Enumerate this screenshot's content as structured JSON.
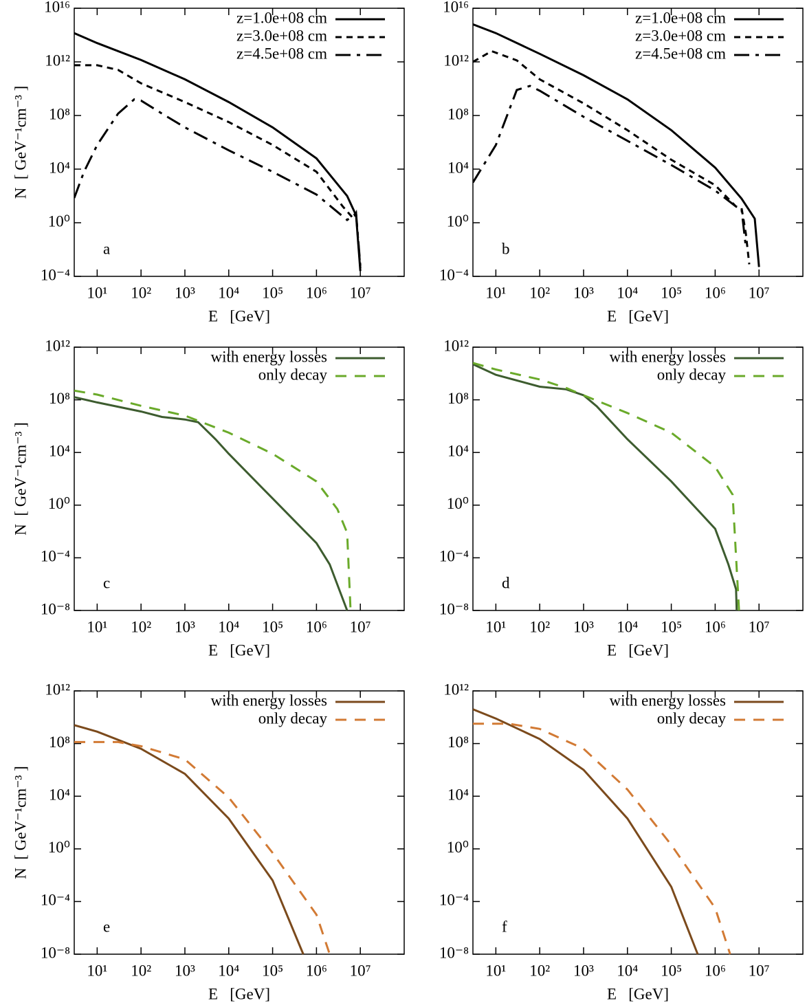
{
  "chart_data": [
    {
      "type": "line",
      "annotation": "a",
      "xlabel": "E   [GeV]",
      "ylabel": "N  [ GeV⁻¹cm⁻³ ]",
      "log_x": true,
      "log_y": true,
      "legend": "upper right",
      "xlim": [
        3,
        100000000.0
      ],
      "ylim": [
        0.0001,
        1e+16
      ],
      "xticks": [
        {
          "value": 10,
          "label": "10¹"
        },
        {
          "value": 100,
          "label": "10²"
        },
        {
          "value": 1000,
          "label": "10³"
        },
        {
          "value": 10000.0,
          "label": "10⁴"
        },
        {
          "value": 100000.0,
          "label": "10⁵"
        },
        {
          "value": 1000000.0,
          "label": "10⁶"
        },
        {
          "value": 10000000.0,
          "label": "10⁷"
        }
      ],
      "yticks": [
        {
          "value": 0.0001,
          "label": "10⁻⁴"
        },
        {
          "value": 1,
          "label": "10⁰"
        },
        {
          "value": 10000.0,
          "label": "10⁴"
        },
        {
          "value": 100000000.0,
          "label": "10⁸"
        },
        {
          "value": 1000000000000.0,
          "label": "10¹²"
        },
        {
          "value": 1e+16,
          "label": "10¹⁶"
        }
      ],
      "series": [
        {
          "name": "z=1.0e+08 cm",
          "color": "#000000",
          "linestyle": "solid",
          "x": [
            3,
            10,
            100,
            1000.0,
            10000.0,
            100000.0,
            1000000.0,
            5000000.0,
            8000000.0,
            10000000.0
          ],
          "values": [
            140000000000000.0,
            25000000000000.0,
            1400000000000.0,
            50000000000.0,
            1000000000.0,
            13000000.0,
            63000.0,
            100,
            3.6,
            0.00025
          ]
        },
        {
          "name": "z=3.0e+08 cm",
          "color": "#000000",
          "linestyle": "dotted",
          "x": [
            3,
            10,
            30,
            100,
            1000.0,
            10000.0,
            100000.0,
            1000000.0,
            4000000.0,
            7000000.0,
            8000000.0,
            10000000.0
          ],
          "values": [
            560000000000.0,
            560000000000.0,
            250000000000.0,
            25000000000.0,
            1000000000.0,
            32000000.0,
            630000.0,
            6300.0,
            16,
            2,
            5,
            0.0004
          ]
        },
        {
          "name": "z=4.5e+08 cm",
          "color": "#000000",
          "linestyle": "dashdot",
          "x": [
            3,
            5,
            10,
            30,
            70,
            100,
            300,
            1000.0,
            10000.0,
            100000.0,
            1000000.0,
            5000000.0,
            8000000.0,
            10000000.0
          ],
          "values": [
            70,
            6300.0,
            630000.0,
            140000000.0,
            1600000000.0,
            1300000000.0,
            140000000.0,
            13000000.0,
            250000.0,
            6300.0,
            126,
            1.6,
            5,
            0.00063
          ]
        }
      ]
    },
    {
      "type": "line",
      "annotation": "b",
      "xlabel": "E   [GeV]",
      "log_x": true,
      "log_y": true,
      "legend": "upper right",
      "xlim": [
        3,
        100000000.0
      ],
      "ylim": [
        0.0001,
        1e+16
      ],
      "xticks": [
        {
          "value": 10,
          "label": "10¹"
        },
        {
          "value": 100,
          "label": "10²"
        },
        {
          "value": 1000,
          "label": "10³"
        },
        {
          "value": 10000.0,
          "label": "10⁴"
        },
        {
          "value": 100000.0,
          "label": "10⁵"
        },
        {
          "value": 1000000.0,
          "label": "10⁶"
        },
        {
          "value": 10000000.0,
          "label": "10⁷"
        }
      ],
      "yticks": [
        {
          "value": 0.0001,
          "label": "10⁻⁴"
        },
        {
          "value": 1,
          "label": "10⁰"
        },
        {
          "value": 10000.0,
          "label": "10⁴"
        },
        {
          "value": 100000000.0,
          "label": "10⁸"
        },
        {
          "value": 1000000000000.0,
          "label": "10¹²"
        },
        {
          "value": 1e+16,
          "label": "10¹⁶"
        }
      ],
      "series": [
        {
          "name": "z=1.0e+08 cm",
          "color": "#000000",
          "linestyle": "solid",
          "x": [
            3,
            10,
            100,
            1000.0,
            10000.0,
            100000.0,
            1000000.0,
            4000000.0,
            8000000.0,
            10000000.0
          ],
          "values": [
            630000000000000.0,
            140000000000000.0,
            4000000000000.0,
            100000000000.0,
            1600000000.0,
            8000000.0,
            13000.0,
            63,
            2,
            0.0005
          ]
        },
        {
          "name": "z=3.0e+08 cm",
          "color": "#000000",
          "linestyle": "dotted",
          "x": [
            3,
            8,
            30,
            100,
            1000.0,
            10000.0,
            100000.0,
            1000000.0,
            3000000.0,
            4000000.0,
            5000000.0,
            6000000.0
          ],
          "values": [
            1000000000000.0,
            6300000000000.0,
            1300000000000.0,
            50000000000.0,
            800000000.0,
            8000000.0,
            50000.0,
            630,
            16,
            12.6,
            0.16,
            0.0008
          ]
        },
        {
          "name": "z=4.5e+08 cm",
          "color": "#000000",
          "linestyle": "dashdot",
          "x": [
            3,
            10,
            30,
            60,
            100,
            1000.0,
            10000.0,
            100000.0,
            1000000.0,
            3000000.0,
            4000000.0,
            5000000.0
          ],
          "values": [
            1000.0,
            630000.0,
            8000000000.0,
            16000000000.0,
            7000000000.0,
            80000000.0,
            1300000.0,
            20000.0,
            250,
            16,
            10,
            0.016
          ]
        }
      ]
    },
    {
      "type": "line",
      "annotation": "c",
      "xlabel": "E   [GeV]",
      "ylabel": "N  [ GeV⁻¹cm⁻³ ]",
      "log_x": true,
      "log_y": true,
      "legend": "upper right",
      "xlim": [
        3,
        100000000.0
      ],
      "ylim": [
        1e-08,
        1000000000000.0
      ],
      "xticks": [
        {
          "value": 10,
          "label": "10¹"
        },
        {
          "value": 100,
          "label": "10²"
        },
        {
          "value": 1000,
          "label": "10³"
        },
        {
          "value": 10000.0,
          "label": "10⁴"
        },
        {
          "value": 100000.0,
          "label": "10⁵"
        },
        {
          "value": 1000000.0,
          "label": "10⁶"
        },
        {
          "value": 10000000.0,
          "label": "10⁷"
        }
      ],
      "yticks": [
        {
          "value": 1e-08,
          "label": "10⁻⁸"
        },
        {
          "value": 0.0001,
          "label": "10⁻⁴"
        },
        {
          "value": 1,
          "label": "10⁰"
        },
        {
          "value": 10000.0,
          "label": "10⁴"
        },
        {
          "value": 100000000.0,
          "label": "10⁸"
        },
        {
          "value": 1000000000000.0,
          "label": "10¹²"
        }
      ],
      "series": [
        {
          "name": "with energy losses",
          "color": "#3d5c2f",
          "linestyle": "solid",
          "x": [
            3,
            10,
            100,
            300,
            1000.0,
            2000.0,
            5000.0,
            10000.0,
            100000.0,
            1000000.0,
            2000000.0,
            5000000.0
          ],
          "values": [
            160000000.0,
            63000000.0,
            13000000.0,
            5000000.0,
            3200000.0,
            2000000.0,
            100000.0,
            8000.0,
            3.2,
            0.0013,
            3.2e-05,
            1e-08
          ]
        },
        {
          "name": "only decay",
          "color": "#6aaa2a",
          "linestyle": "dashed",
          "x": [
            3,
            10,
            100,
            1000.0,
            10000.0,
            100000.0,
            1000000.0,
            3000000.0,
            5000000.0,
            6000000.0
          ],
          "values": [
            500000000.0,
            250000000.0,
            35000000.0,
            6300000.0,
            320000.0,
            8000.0,
            63,
            0.5,
            0.008,
            1e-08
          ]
        }
      ]
    },
    {
      "type": "line",
      "annotation": "d",
      "xlabel": "E   [GeV]",
      "log_x": true,
      "log_y": true,
      "legend": "upper right",
      "xlim": [
        3,
        100000000.0
      ],
      "ylim": [
        1e-08,
        1000000000000.0
      ],
      "xticks": [
        {
          "value": 10,
          "label": "10¹"
        },
        {
          "value": 100,
          "label": "10²"
        },
        {
          "value": 1000,
          "label": "10³"
        },
        {
          "value": 10000.0,
          "label": "10⁴"
        },
        {
          "value": 100000.0,
          "label": "10⁵"
        },
        {
          "value": 1000000.0,
          "label": "10⁶"
        },
        {
          "value": 10000000.0,
          "label": "10⁷"
        }
      ],
      "yticks": [
        {
          "value": 1e-08,
          "label": "10⁻⁸"
        },
        {
          "value": 0.0001,
          "label": "10⁻⁴"
        },
        {
          "value": 1,
          "label": "10⁰"
        },
        {
          "value": 10000.0,
          "label": "10⁴"
        },
        {
          "value": 100000000.0,
          "label": "10⁸"
        },
        {
          "value": 1000000000000.0,
          "label": "10¹²"
        }
      ],
      "series": [
        {
          "name": "with energy losses",
          "color": "#3d5c2f",
          "linestyle": "solid",
          "x": [
            3,
            10,
            100,
            400,
            1000.0,
            2000.0,
            10000.0,
            100000.0,
            1000000.0,
            2000000.0,
            3000000.0,
            3100000.0
          ],
          "values": [
            50000000000.0,
            8000000000.0,
            1000000000.0,
            630000000.0,
            220000000.0,
            32000000.0,
            100000.0,
            63,
            0.016,
            3.2e-05,
            4e-07,
            1e-08
          ]
        },
        {
          "name": "only decay",
          "color": "#6aaa2a",
          "linestyle": "dashed",
          "x": [
            3,
            10,
            100,
            400,
            1000.0,
            10000.0,
            100000.0,
            1000000.0,
            2500000.0,
            3500000.0
          ],
          "values": [
            63000000000.0,
            20000000000.0,
            3500000000.0,
            800000000.0,
            220000000.0,
            10000000.0,
            320000.0,
            800,
            6.3,
            1e-08
          ]
        }
      ]
    },
    {
      "type": "line",
      "annotation": "e",
      "xlabel": "E   [GeV]",
      "ylabel": "N  [ GeV⁻¹cm⁻³ ]",
      "log_x": true,
      "log_y": true,
      "legend": "upper right",
      "xlim": [
        3,
        100000000.0
      ],
      "ylim": [
        1e-08,
        1000000000000.0
      ],
      "xticks": [
        {
          "value": 10,
          "label": "10¹"
        },
        {
          "value": 100,
          "label": "10²"
        },
        {
          "value": 1000,
          "label": "10³"
        },
        {
          "value": 10000.0,
          "label": "10⁴"
        },
        {
          "value": 100000.0,
          "label": "10⁵"
        },
        {
          "value": 1000000.0,
          "label": "10⁶"
        },
        {
          "value": 10000000.0,
          "label": "10⁷"
        }
      ],
      "yticks": [
        {
          "value": 1e-08,
          "label": "10⁻⁸"
        },
        {
          "value": 0.0001,
          "label": "10⁻⁴"
        },
        {
          "value": 1,
          "label": "10⁰"
        },
        {
          "value": 10000.0,
          "label": "10⁴"
        },
        {
          "value": 100000000.0,
          "label": "10⁸"
        },
        {
          "value": 1000000000000.0,
          "label": "10¹²"
        }
      ],
      "series": [
        {
          "name": "with energy losses",
          "color": "#7b4a1c",
          "linestyle": "solid",
          "x": [
            3,
            10,
            100,
            1000.0,
            10000.0,
            100000.0,
            500000.0
          ],
          "values": [
            2500000000.0,
            800000000.0,
            40000000.0,
            500000.0,
            200,
            0.004,
            1e-08
          ]
        },
        {
          "name": "only decay",
          "color": "#d27a34",
          "linestyle": "dashed",
          "x": [
            3,
            30,
            100,
            1000.0,
            10000.0,
            100000.0,
            1000000.0,
            2000000.0
          ],
          "values": [
            130000000.0,
            130000000.0,
            63000000.0,
            6300000.0,
            8000.0,
            0.5,
            1e-05,
            1e-08
          ]
        }
      ]
    },
    {
      "type": "line",
      "annotation": "f",
      "xlabel": "E   [GeV]",
      "log_x": true,
      "log_y": true,
      "legend": "upper right",
      "xlim": [
        3,
        100000000.0
      ],
      "ylim": [
        1e-08,
        1000000000000.0
      ],
      "xticks": [
        {
          "value": 10,
          "label": "10¹"
        },
        {
          "value": 100,
          "label": "10²"
        },
        {
          "value": 1000,
          "label": "10³"
        },
        {
          "value": 10000.0,
          "label": "10⁴"
        },
        {
          "value": 100000.0,
          "label": "10⁵"
        },
        {
          "value": 1000000.0,
          "label": "10⁶"
        },
        {
          "value": 10000000.0,
          "label": "10⁷"
        }
      ],
      "yticks": [
        {
          "value": 1e-08,
          "label": "10⁻⁸"
        },
        {
          "value": 0.0001,
          "label": "10⁻⁴"
        },
        {
          "value": 1,
          "label": "10⁰"
        },
        {
          "value": 10000.0,
          "label": "10⁴"
        },
        {
          "value": 100000000.0,
          "label": "10⁸"
        },
        {
          "value": 1000000000000.0,
          "label": "10¹²"
        }
      ],
      "series": [
        {
          "name": "with energy losses",
          "color": "#7b4a1c",
          "linestyle": "solid",
          "x": [
            3,
            10,
            100,
            1000.0,
            10000.0,
            100000.0,
            400000.0
          ],
          "values": [
            40000000000.0,
            8000000000.0,
            220000000.0,
            1000000.0,
            200,
            0.0013,
            1e-08
          ]
        },
        {
          "name": "only decay",
          "color": "#d27a34",
          "linestyle": "dashed",
          "x": [
            3,
            20,
            100,
            1000.0,
            10000.0,
            100000.0,
            1000000.0,
            2200000.0
          ],
          "values": [
            3200000000.0,
            3200000000.0,
            1300000000.0,
            40000000.0,
            32000.0,
            2,
            3.2e-05,
            1e-08
          ]
        }
      ]
    }
  ]
}
